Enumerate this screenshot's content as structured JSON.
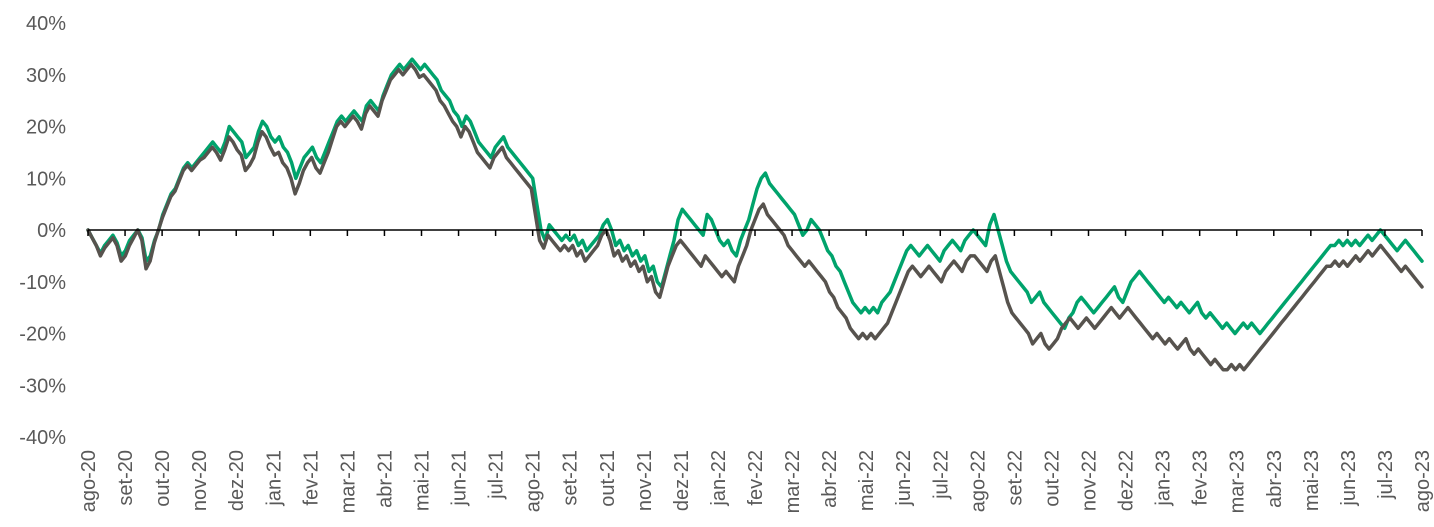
{
  "chart_data": {
    "type": "line",
    "title": "",
    "xlabel": "",
    "ylabel": "",
    "y_unit": "%",
    "ylim": [
      -40,
      40
    ],
    "y_ticks": [
      "40%",
      "30%",
      "20%",
      "10%",
      "0%",
      "-10%",
      "-20%",
      "-30%",
      "-40%"
    ],
    "grid": false,
    "legend": "none",
    "x_ticks": [
      "ago-20",
      "set-20",
      "out-20",
      "nov-20",
      "dez-20",
      "jan-21",
      "fev-21",
      "mar-21",
      "abr-21",
      "mai-21",
      "jun-21",
      "jul-21",
      "ago-21",
      "set-21",
      "out-21",
      "nov-21",
      "dez-21",
      "jan-22",
      "fev-22",
      "mar-22",
      "abr-22",
      "mai-22",
      "jun-22",
      "jul-22",
      "ago-22",
      "set-22",
      "out-22",
      "nov-22",
      "dez-22",
      "jan-23",
      "fev-23",
      "mar-23",
      "abr-23",
      "mai-23",
      "jun-23",
      "jul-23",
      "ago-23"
    ],
    "series": [
      {
        "color": "#00A36C",
        "values": [
          0,
          -1.5,
          -3,
          -4.5,
          -3,
          -2,
          -1,
          -2.5,
          -5,
          -4,
          -2,
          -1,
          0,
          -1.5,
          -6,
          -5,
          -2,
          0,
          3,
          5,
          7,
          8,
          10,
          12,
          13,
          12,
          13,
          14,
          15,
          16,
          17,
          16,
          15,
          17,
          20,
          19,
          18,
          17,
          14,
          15,
          16,
          19,
          21,
          20,
          18,
          17,
          18,
          16,
          15,
          13,
          10,
          12,
          14,
          15,
          16,
          14,
          13,
          15,
          17,
          19,
          21,
          22,
          21,
          22,
          23,
          22,
          21,
          24,
          25,
          24,
          23,
          26,
          28,
          30,
          31,
          32,
          31,
          32,
          33,
          32,
          31,
          32,
          31,
          30,
          29,
          27,
          26,
          25,
          23,
          22,
          20,
          22,
          21,
          19,
          17,
          16,
          15,
          14,
          16,
          17,
          18,
          16,
          15,
          14,
          13,
          12,
          11,
          10,
          5,
          0,
          -2,
          1,
          0,
          -1,
          -2,
          -1,
          -2,
          -1,
          -3,
          -2,
          -4,
          -3,
          -2,
          -1,
          1,
          2,
          0,
          -3,
          -2,
          -4,
          -3,
          -5,
          -4,
          -6,
          -5,
          -8,
          -7,
          -10,
          -11,
          -8,
          -5,
          -2,
          2,
          4,
          3,
          2,
          1,
          0,
          -1,
          3,
          2,
          0,
          -2,
          -3,
          -2,
          -4,
          -5,
          -2,
          0,
          2,
          5,
          8,
          10,
          11,
          9,
          8,
          7,
          6,
          5,
          4,
          3,
          1,
          -1,
          0,
          2,
          1,
          0,
          -2,
          -4,
          -5,
          -7,
          -8,
          -10,
          -12,
          -14,
          -15,
          -16,
          -15,
          -16,
          -15,
          -16,
          -14,
          -13,
          -12,
          -10,
          -8,
          -6,
          -4,
          -3,
          -4,
          -5,
          -4,
          -3,
          -4,
          -5,
          -6,
          -4,
          -3,
          -2,
          -3,
          -4,
          -2,
          -1,
          0,
          -1,
          -2,
          -3,
          1,
          3,
          0,
          -3,
          -6,
          -8,
          -9,
          -10,
          -11,
          -12,
          -14,
          -13,
          -12,
          -14,
          -15,
          -16,
          -17,
          -18,
          -19,
          -17,
          -16,
          -14,
          -13,
          -14,
          -15,
          -16,
          -15,
          -14,
          -13,
          -12,
          -11,
          -13,
          -14,
          -12,
          -10,
          -9,
          -8,
          -9,
          -10,
          -11,
          -12,
          -13,
          -14,
          -13,
          -14,
          -15,
          -14,
          -15,
          -16,
          -15,
          -14,
          -16,
          -17,
          -16,
          -17,
          -18,
          -19,
          -18,
          -19,
          -20,
          -19,
          -18,
          -19,
          -18,
          -19,
          -20,
          -19,
          -18,
          -17,
          -16,
          -15,
          -14,
          -13,
          -12,
          -11,
          -10,
          -9,
          -8,
          -7,
          -6,
          -5,
          -4,
          -3,
          -3,
          -2,
          -3,
          -2,
          -3,
          -2,
          -3,
          -2,
          -1,
          -2,
          -1,
          0,
          -1,
          -2,
          -3,
          -4,
          -3,
          -2,
          -3,
          -4,
          -5,
          -6
        ]
      },
      {
        "color": "#57534E",
        "values": [
          0,
          -1.5,
          -3,
          -5,
          -3.5,
          -2.5,
          -1.5,
          -3,
          -6,
          -5,
          -3,
          -1.5,
          0,
          -2,
          -7.5,
          -6,
          -2.5,
          0,
          2.5,
          4.5,
          6.5,
          7.5,
          9.5,
          11.5,
          12.5,
          11.5,
          12.5,
          13.5,
          14,
          15,
          16,
          15,
          13.5,
          15.5,
          18,
          17,
          15.5,
          14.5,
          11.5,
          12.5,
          14,
          17,
          19,
          18,
          16,
          14.5,
          15,
          13,
          12,
          10,
          7,
          9,
          11.5,
          13,
          14,
          12,
          11,
          13,
          15,
          17.5,
          20,
          21,
          20,
          21,
          22,
          21,
          19.5,
          22.5,
          24,
          23,
          22,
          25,
          27,
          29,
          30,
          31,
          30,
          31,
          32,
          31,
          29.5,
          30,
          29,
          28,
          27,
          25,
          24,
          22.5,
          21,
          20,
          18,
          20,
          19,
          17,
          15,
          14,
          13,
          12,
          14,
          15,
          16,
          14,
          13,
          12,
          11,
          10,
          9,
          8,
          3,
          -2,
          -3.5,
          -1,
          -2,
          -3,
          -4,
          -3,
          -4,
          -3,
          -5,
          -4,
          -6,
          -5,
          -4,
          -3,
          -1,
          0,
          -2,
          -5,
          -4,
          -6,
          -5,
          -7,
          -6,
          -8,
          -7,
          -10,
          -9,
          -12,
          -13,
          -10,
          -7,
          -5,
          -3,
          -2,
          -3,
          -4,
          -5,
          -6,
          -7,
          -5,
          -6,
          -7,
          -8,
          -9,
          -8,
          -9,
          -10,
          -7,
          -5,
          -3,
          0,
          2,
          4,
          5,
          3,
          2,
          1,
          0,
          -1,
          -3,
          -4,
          -5,
          -6,
          -7,
          -6,
          -7,
          -8,
          -9,
          -10,
          -12,
          -13,
          -15,
          -16,
          -17,
          -19,
          -20,
          -21,
          -20,
          -21,
          -20,
          -21,
          -20,
          -19,
          -18,
          -16,
          -14,
          -12,
          -10,
          -8,
          -7,
          -8,
          -9,
          -8,
          -7,
          -8,
          -9,
          -10,
          -8,
          -7,
          -6,
          -7,
          -8,
          -6,
          -5,
          -5,
          -6,
          -7,
          -8,
          -6,
          -5,
          -8,
          -11,
          -14,
          -16,
          -17,
          -18,
          -19,
          -20,
          -22,
          -21,
          -20,
          -22,
          -23,
          -22,
          -21,
          -19,
          -18,
          -17,
          -18,
          -19,
          -18,
          -17,
          -18,
          -19,
          -18,
          -17,
          -16,
          -15,
          -16,
          -17,
          -16,
          -15,
          -16,
          -17,
          -18,
          -19,
          -20,
          -21,
          -20,
          -21,
          -22,
          -21,
          -22,
          -23,
          -22,
          -21,
          -23,
          -24,
          -23,
          -24,
          -25,
          -26,
          -25,
          -26,
          -27,
          -27,
          -26,
          -27,
          -26,
          -27,
          -26,
          -25,
          -24,
          -23,
          -22,
          -21,
          -20,
          -19,
          -18,
          -17,
          -16,
          -15,
          -14,
          -13,
          -12,
          -11,
          -10,
          -9,
          -8,
          -7,
          -7,
          -6,
          -7,
          -6,
          -7,
          -6,
          -5,
          -6,
          -5,
          -4,
          -5,
          -4,
          -3,
          -4,
          -5,
          -6,
          -7,
          -8,
          -7,
          -8,
          -9,
          -10,
          -11
        ]
      }
    ]
  }
}
